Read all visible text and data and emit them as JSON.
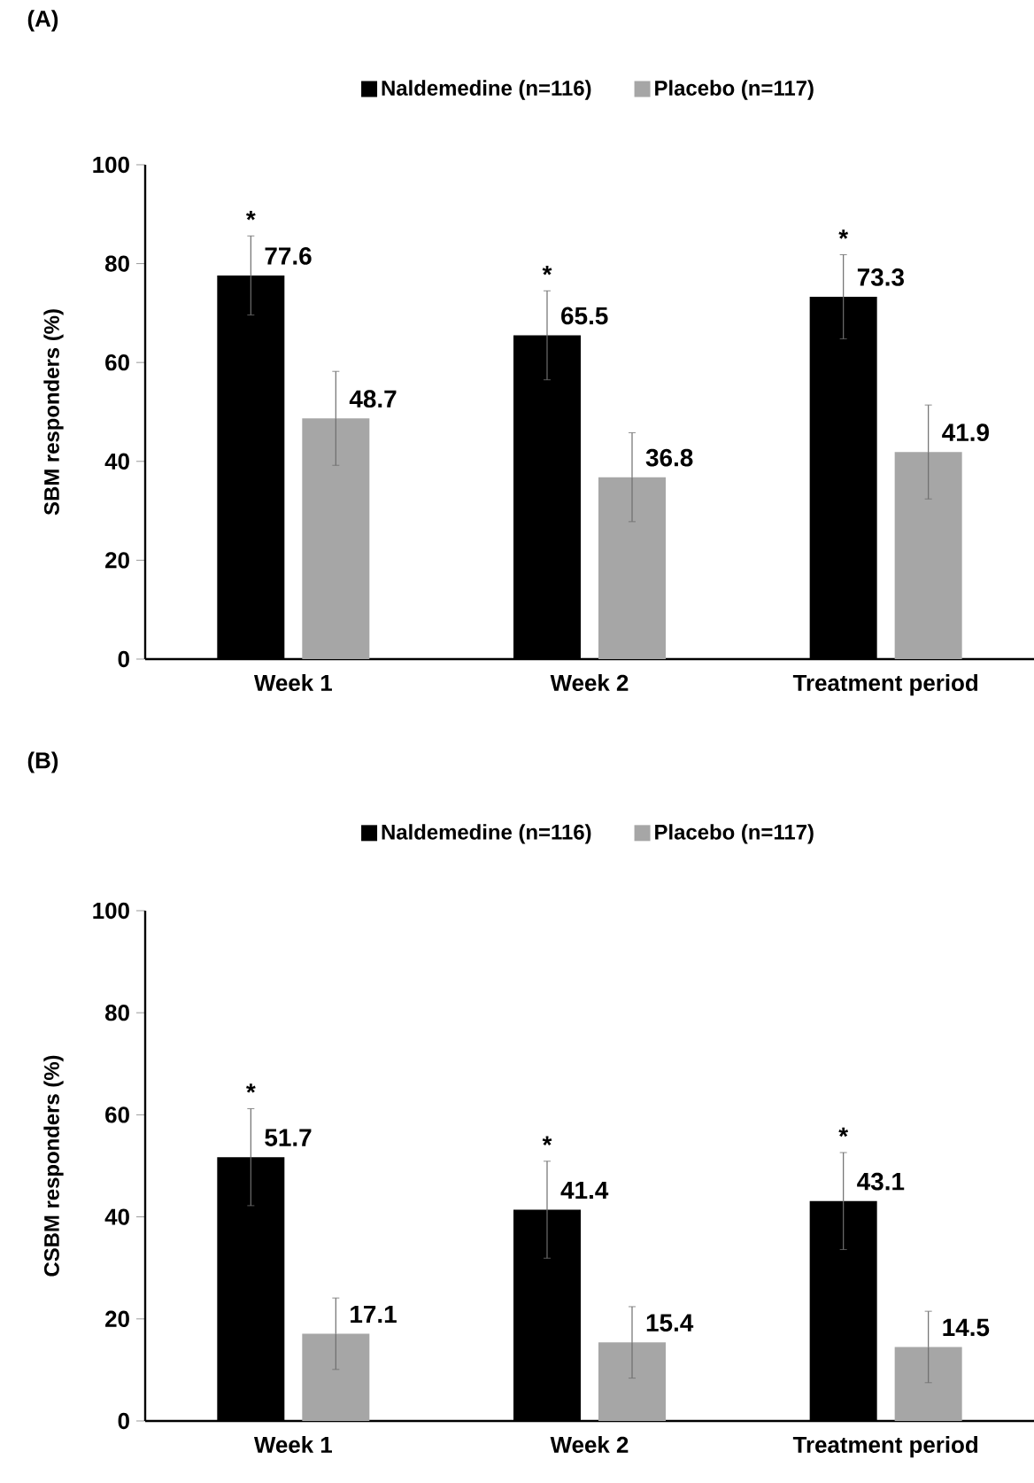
{
  "chart_data": [
    {
      "type": "bar",
      "title": "(A)",
      "ylabel": "SBM responders (%)",
      "categories": [
        "Week 1",
        "Week 2",
        "Treatment period"
      ],
      "series": [
        {
          "name": "Naldemedine (n=116)",
          "color": "#000000",
          "values": [
            77.6,
            65.5,
            73.3
          ],
          "errors": [
            8,
            9,
            8.5
          ]
        },
        {
          "name": "Placebo (n=117)",
          "color": "#a6a6a6",
          "values": [
            48.7,
            36.8,
            41.9
          ],
          "errors": [
            9.5,
            9,
            9.5
          ]
        }
      ],
      "ylim": [
        0,
        100
      ],
      "yticks": [
        0,
        20,
        40,
        60,
        80,
        100
      ],
      "data_labels": true,
      "legend": "top",
      "annotations": [
        "*",
        "*",
        "*"
      ]
    },
    {
      "type": "bar",
      "title": "(B)",
      "ylabel": "CSBM responders (%)",
      "categories": [
        "Week 1",
        "Week 2",
        "Treatment period"
      ],
      "series": [
        {
          "name": "Naldemedine (n=116)",
          "color": "#000000",
          "values": [
            51.7,
            41.4,
            43.1
          ],
          "errors": [
            9.5,
            9.5,
            9.5
          ]
        },
        {
          "name": "Placebo (n=117)",
          "color": "#a6a6a6",
          "values": [
            17.1,
            15.4,
            14.5
          ],
          "errors": [
            7,
            7,
            7
          ]
        }
      ],
      "ylim": [
        0,
        100
      ],
      "yticks": [
        0,
        20,
        40,
        60,
        80,
        100
      ],
      "data_labels": true,
      "legend": "top",
      "annotations": [
        "*",
        "*",
        "*"
      ]
    }
  ]
}
